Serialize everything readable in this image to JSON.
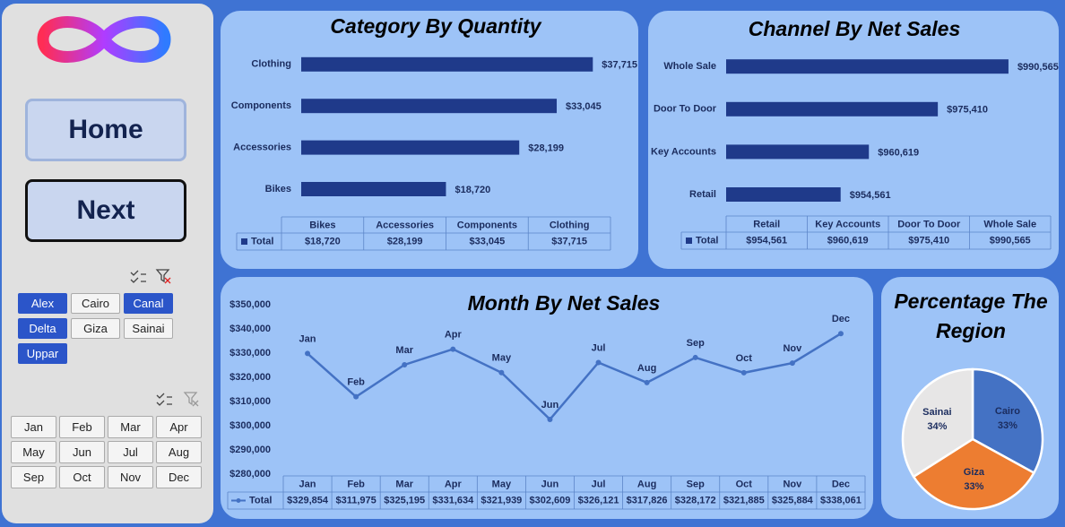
{
  "sidebar": {
    "buttons": [
      "Home",
      "Next"
    ],
    "regions": {
      "items": [
        "Alex",
        "Cairo",
        "Canal",
        "Delta",
        "Giza",
        "Sainai",
        "Uppar"
      ],
      "selected": [
        true,
        false,
        true,
        true,
        false,
        false,
        true
      ]
    },
    "months": [
      "Jan",
      "Feb",
      "Mar",
      "Apr",
      "May",
      "Jun",
      "Jul",
      "Aug",
      "Sep",
      "Oct",
      "Nov",
      "Dec"
    ]
  },
  "chart_data": [
    {
      "type": "bar",
      "orientation": "horizontal",
      "title": "Category By Quantity",
      "categories": [
        "Bikes",
        "Accessories",
        "Components",
        "Clothing"
      ],
      "series": [
        {
          "name": "Total",
          "color": "#1f3a8a",
          "values": [
            18720,
            28199,
            33045,
            37715
          ],
          "value_labels": [
            "$18,720",
            "$28,199",
            "$33,045",
            "$37,715"
          ]
        }
      ],
      "xlim": [
        0,
        40000
      ]
    },
    {
      "type": "bar",
      "orientation": "horizontal",
      "title": "Channel By Net Sales",
      "categories": [
        "Retail",
        "Key Accounts",
        "Door To Door",
        "Whole Sale"
      ],
      "series": [
        {
          "name": "Total",
          "color": "#1f3a8a",
          "values": [
            954561,
            960619,
            975410,
            990565
          ],
          "value_labels": [
            "$954,561",
            "$960,619",
            "$975,410",
            "$990,565"
          ]
        }
      ],
      "xlim": [
        930000,
        1000000
      ]
    },
    {
      "type": "line",
      "title": "Month By Net Sales",
      "categories": [
        "Jan",
        "Feb",
        "Mar",
        "Apr",
        "May",
        "Jun",
        "Jul",
        "Aug",
        "Sep",
        "Oct",
        "Nov",
        "Dec"
      ],
      "series": [
        {
          "name": "Total",
          "color": "#4472c4",
          "values": [
            329854,
            311975,
            325195,
            331634,
            321939,
            302609,
            326121,
            317826,
            328172,
            321885,
            325884,
            338061
          ],
          "value_labels": [
            "$329,854",
            "$311,975",
            "$325,195",
            "$331,634",
            "$321,939",
            "$302,609",
            "$326,121",
            "$317,826",
            "$328,172",
            "$321,885",
            "$325,884",
            "$338,061"
          ]
        }
      ],
      "ylim": [
        280000,
        350000
      ],
      "yticks": [
        {
          "value": 280000,
          "label": "$280,000"
        },
        {
          "value": 290000,
          "label": "$290,000"
        },
        {
          "value": 300000,
          "label": "$300,000"
        },
        {
          "value": 310000,
          "label": "$310,000"
        },
        {
          "value": 320000,
          "label": "$320,000"
        },
        {
          "value": 330000,
          "label": "$330,000"
        },
        {
          "value": 340000,
          "label": "$340,000"
        },
        {
          "value": 350000,
          "label": "$350,000"
        }
      ],
      "grid": false
    },
    {
      "type": "pie",
      "title": "Percentage The Region",
      "categories": [
        "Cairo",
        "Giza",
        "Sainai"
      ],
      "values": [
        33,
        33,
        34
      ],
      "value_labels": [
        "33%",
        "33%",
        "34%"
      ],
      "colors": [
        "#4472c4",
        "#ed7d31",
        "#e7e6e6"
      ]
    }
  ]
}
